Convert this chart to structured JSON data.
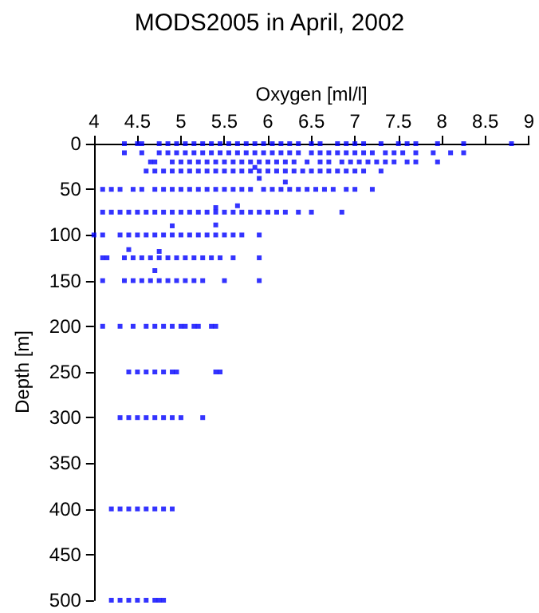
{
  "chart_data": {
    "type": "scatter",
    "title": "MODS2005 in April, 2002",
    "xlabel": "Oxygen [ml/l]",
    "ylabel": "Depth [m]",
    "xlim": [
      4,
      9
    ],
    "xticks": [
      4,
      4.5,
      5,
      5.5,
      6,
      6.5,
      7,
      7.5,
      8,
      8.5,
      9
    ],
    "ylim": [
      500,
      0
    ],
    "yticks": [
      0,
      50,
      100,
      150,
      200,
      250,
      300,
      350,
      400,
      450,
      500
    ],
    "marker": "square",
    "series": [
      {
        "color": "#0000ff",
        "x": [
          4.35,
          4.5,
          4.55,
          4.75,
          4.85,
          4.95,
          5.05,
          5.15,
          5.25,
          5.35,
          5.45,
          5.55,
          5.65,
          5.75,
          5.85,
          5.95,
          6.05,
          6.15,
          6.25,
          6.35,
          6.5,
          6.6,
          6.8,
          6.9,
          7.0,
          7.1,
          7.3,
          7.5,
          7.6,
          7.7,
          7.95,
          8.25,
          8.8
        ],
        "values": [
          0,
          0,
          0,
          0,
          0,
          0,
          0,
          0,
          0,
          0,
          0,
          0,
          0,
          0,
          0,
          0,
          0,
          0,
          0,
          0,
          0,
          0,
          0,
          0,
          0,
          0,
          0,
          0,
          0,
          0,
          0,
          0,
          0
        ]
      },
      {
        "color": "#0000ff",
        "x": [
          4.35,
          4.55,
          4.75,
          4.85,
          4.95,
          5.05,
          5.15,
          5.25,
          5.35,
          5.45,
          5.55,
          5.65,
          5.75,
          5.85,
          5.95,
          6.05,
          6.15,
          6.25,
          6.35,
          6.5,
          6.6,
          6.7,
          6.8,
          6.9,
          7.0,
          7.1,
          7.2,
          7.35,
          7.45,
          7.55,
          7.7,
          7.9,
          8.1,
          8.25
        ],
        "values": [
          10,
          10,
          10,
          10,
          10,
          10,
          10,
          10,
          10,
          10,
          10,
          10,
          10,
          10,
          10,
          10,
          10,
          10,
          10,
          10,
          10,
          10,
          10,
          10,
          10,
          10,
          10,
          10,
          10,
          10,
          10,
          10,
          10,
          10
        ]
      },
      {
        "color": "#0000ff",
        "x": [
          4.65,
          4.7,
          4.9,
          5.0,
          5.1,
          5.2,
          5.3,
          5.4,
          5.5,
          5.6,
          5.7,
          5.8,
          5.9,
          6.0,
          6.1,
          6.2,
          6.3,
          6.45,
          6.6,
          6.7,
          6.85,
          6.95,
          7.05,
          7.15,
          7.25,
          7.35,
          7.45,
          7.6,
          7.7,
          7.95
        ],
        "values": [
          20,
          20,
          20,
          20,
          20,
          20,
          20,
          20,
          20,
          20,
          20,
          20,
          20,
          20,
          20,
          20,
          20,
          20,
          20,
          20,
          20,
          20,
          20,
          20,
          20,
          20,
          20,
          20,
          20,
          20
        ]
      },
      {
        "color": "#0000ff",
        "x": [
          4.6,
          4.7,
          4.8,
          4.9,
          5.0,
          5.1,
          5.2,
          5.3,
          5.4,
          5.5,
          5.6,
          5.7,
          5.8,
          5.9,
          6.0,
          6.1,
          6.2,
          6.3,
          6.4,
          6.5,
          6.6,
          6.7,
          6.8,
          6.9,
          7.0,
          7.1,
          7.3,
          5.85,
          5.9,
          6.2
        ],
        "values": [
          30,
          30,
          30,
          30,
          30,
          30,
          30,
          30,
          30,
          30,
          30,
          30,
          30,
          30,
          30,
          30,
          30,
          30,
          30,
          30,
          30,
          30,
          30,
          30,
          30,
          30,
          30,
          26,
          38,
          42
        ]
      },
      {
        "color": "#0000ff",
        "x": [
          4.1,
          4.2,
          4.3,
          4.45,
          4.55,
          4.7,
          4.8,
          4.9,
          5.0,
          5.1,
          5.2,
          5.3,
          5.4,
          5.5,
          5.6,
          5.7,
          5.8,
          5.95,
          6.05,
          6.15,
          6.25,
          6.35,
          6.45,
          6.55,
          6.65,
          6.75,
          6.9,
          7.0,
          7.2,
          5.4,
          5.65
        ],
        "values": [
          50,
          50,
          50,
          50,
          50,
          50,
          50,
          50,
          50,
          50,
          50,
          50,
          50,
          50,
          50,
          50,
          50,
          50,
          50,
          50,
          50,
          50,
          50,
          50,
          50,
          50,
          50,
          50,
          50,
          70,
          68
        ]
      },
      {
        "color": "#0000ff",
        "x": [
          4.1,
          4.2,
          4.3,
          4.4,
          4.5,
          4.6,
          4.7,
          4.8,
          4.9,
          5.0,
          5.1,
          5.2,
          5.3,
          5.4,
          5.5,
          5.6,
          5.7,
          5.8,
          5.9,
          6.0,
          6.1,
          6.2,
          6.35,
          6.5,
          6.85,
          4.9,
          5.4
        ],
        "values": [
          75,
          75,
          75,
          75,
          75,
          75,
          75,
          75,
          75,
          75,
          75,
          75,
          75,
          75,
          75,
          75,
          75,
          75,
          75,
          75,
          75,
          75,
          75,
          75,
          75,
          90,
          89
        ]
      },
      {
        "color": "#0000ff",
        "x": [
          4.0,
          4.1,
          4.3,
          4.4,
          4.5,
          4.6,
          4.7,
          4.8,
          4.9,
          5.0,
          5.1,
          5.2,
          5.3,
          5.4,
          5.5,
          5.6,
          5.7,
          5.9,
          4.4,
          4.75
        ],
        "values": [
          100,
          100,
          100,
          100,
          100,
          100,
          100,
          100,
          100,
          100,
          100,
          100,
          100,
          100,
          100,
          100,
          100,
          100,
          116,
          118
        ]
      },
      {
        "color": "#0000ff",
        "x": [
          4.1,
          4.15,
          4.35,
          4.45,
          4.55,
          4.65,
          4.75,
          4.85,
          4.95,
          5.05,
          5.15,
          5.25,
          5.35,
          5.45,
          5.6,
          5.9,
          4.7
        ],
        "values": [
          125,
          125,
          125,
          125,
          125,
          125,
          125,
          125,
          125,
          125,
          125,
          125,
          125,
          125,
          125,
          125,
          139
        ]
      },
      {
        "color": "#0000ff",
        "x": [
          4.1,
          4.35,
          4.45,
          4.55,
          4.65,
          4.75,
          4.85,
          4.95,
          5.05,
          5.15,
          5.25,
          5.5,
          5.9
        ],
        "values": [
          150,
          150,
          150,
          150,
          150,
          150,
          150,
          150,
          150,
          150,
          150,
          150,
          150
        ]
      },
      {
        "color": "#0000ff",
        "x": [
          4.1,
          4.3,
          4.45,
          4.6,
          4.7,
          4.8,
          4.9,
          5.0,
          5.05,
          5.15,
          5.2,
          5.35,
          5.4
        ],
        "values": [
          200,
          200,
          200,
          200,
          200,
          200,
          200,
          200,
          200,
          200,
          200,
          200,
          200
        ]
      },
      {
        "color": "#0000ff",
        "x": [
          4.4,
          4.5,
          4.6,
          4.7,
          4.8,
          4.9,
          4.95,
          5.4,
          5.45
        ],
        "values": [
          250,
          250,
          250,
          250,
          250,
          250,
          250,
          250,
          250
        ]
      },
      {
        "color": "#0000ff",
        "x": [
          4.3,
          4.4,
          4.5,
          4.6,
          4.7,
          4.8,
          4.9,
          5.0,
          5.25
        ],
        "values": [
          300,
          300,
          300,
          300,
          300,
          300,
          300,
          300,
          300
        ]
      },
      {
        "color": "#0000ff",
        "x": [
          4.2,
          4.3,
          4.4,
          4.5,
          4.6,
          4.7,
          4.8,
          4.9
        ],
        "values": [
          400,
          400,
          400,
          400,
          400,
          400,
          400,
          400
        ]
      },
      {
        "color": "#0000ff",
        "x": [
          4.2,
          4.3,
          4.4,
          4.5,
          4.6,
          4.7,
          4.75,
          4.8
        ],
        "values": [
          500,
          500,
          500,
          500,
          500,
          500,
          500,
          500
        ]
      }
    ]
  }
}
